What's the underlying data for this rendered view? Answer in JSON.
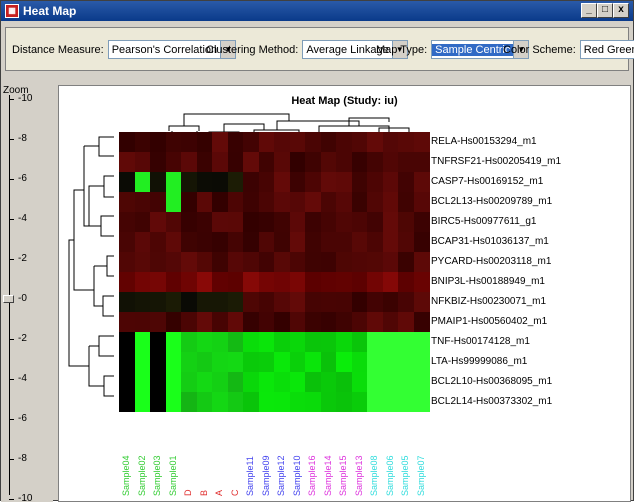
{
  "window": {
    "title": "Heat Map",
    "app_icon": "heatmap-app-icon",
    "buttons": [
      "_",
      "□",
      "x"
    ]
  },
  "toolbar": {
    "distance_label": "Distance Measure:",
    "distance_value": "Pearson's Correlation",
    "clustering_label": "Clustering Method:",
    "clustering_value": "Average Linkage",
    "maptype_label": "Map Type:",
    "maptype_value": "Sample Centric",
    "color_label": "Color Scheme:",
    "color_value": "Red Green"
  },
  "zoom": {
    "label": "Zoom",
    "ticks": [
      "-10",
      "-8",
      "-6",
      "-4",
      "-2",
      "-0",
      "-2",
      "-4",
      "-6",
      "-8",
      "-10"
    ],
    "level": 0
  },
  "heatmap": {
    "title": "Heat Map (Study: iu)",
    "rows": [
      "RELA-Hs00153294_m1",
      "TNFRSF21-Hs00205419_m1",
      "CASP7-Hs00169152_m1",
      "BCL2L13-Hs00209789_m1",
      "BIRC5-Hs00977611_g1",
      "BCAP31-Hs01036137_m1",
      "PYCARD-Hs00203118_m1",
      "BNIP3L-Hs00188949_m1",
      "NFKBIZ-Hs00230071_m1",
      "PMAIP1-Hs00560402_m1",
      "TNF-Hs00174128_m1",
      "LTA-Hs99999086_m1",
      "BCL2L10-Hs00368095_m1",
      "BCL2L14-Hs00373302_m1"
    ],
    "columns": [
      {
        "name": "Sample04",
        "color": "#33cc33"
      },
      {
        "name": "Sample02",
        "color": "#33cc33"
      },
      {
        "name": "Sample03",
        "color": "#33cc33"
      },
      {
        "name": "Sample01",
        "color": "#33cc33"
      },
      {
        "name": "D",
        "color": "#e03030"
      },
      {
        "name": "B",
        "color": "#e03030"
      },
      {
        "name": "A",
        "color": "#e03030"
      },
      {
        "name": "C",
        "color": "#e03030"
      },
      {
        "name": "Sample11",
        "color": "#4444ee"
      },
      {
        "name": "Sample09",
        "color": "#4444ee"
      },
      {
        "name": "Sample12",
        "color": "#4444ee"
      },
      {
        "name": "Sample10",
        "color": "#4444ee"
      },
      {
        "name": "Sample16",
        "color": "#dd33dd"
      },
      {
        "name": "Sample14",
        "color": "#dd33dd"
      },
      {
        "name": "Sample15",
        "color": "#dd33dd"
      },
      {
        "name": "Sample13",
        "color": "#dd33dd"
      },
      {
        "name": "Sample08",
        "color": "#33dddd"
      },
      {
        "name": "Sample06",
        "color": "#33dddd"
      },
      {
        "name": "Sample05",
        "color": "#33dddd"
      },
      {
        "name": "Sample07",
        "color": "#33dddd"
      }
    ]
  }
}
